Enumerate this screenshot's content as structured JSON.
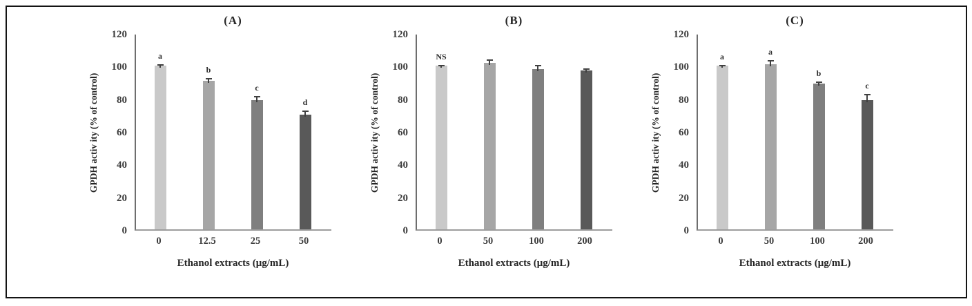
{
  "colors": {
    "bar_palette": [
      "#c9c9c9",
      "#a6a6a6",
      "#7f7f7f",
      "#595959"
    ],
    "error_bar": "#404040",
    "y_axis_line": "#6e6e6e",
    "x_axis_line": "#9c9c9c",
    "text": "#262626",
    "frame_border": "#141414",
    "background": "#ffffff"
  },
  "chart_data": [
    {
      "type": "bar",
      "title": "(A)",
      "xlabel": "Ethanol extracts (μg/mL)",
      "ylabel": "GPDH activ ity (% of control)",
      "ylim": [
        0,
        120
      ],
      "yticks": [
        0,
        20,
        40,
        60,
        80,
        100,
        120
      ],
      "grid": false,
      "legend": "none",
      "categories": [
        "0",
        "12.5",
        "25",
        "50"
      ],
      "values": [
        100,
        91,
        79,
        70
      ],
      "errors": [
        1,
        1.5,
        2.5,
        2.5
      ],
      "sig_labels": [
        "a",
        "b",
        "c",
        "d"
      ],
      "bar_colors": [
        "#c9c9c9",
        "#a6a6a6",
        "#7f7f7f",
        "#595959"
      ]
    },
    {
      "type": "bar",
      "title": "(B)",
      "xlabel": "Ethanol extracts (μg/mL)",
      "ylabel": "GPDH activ ity (% of control)",
      "ylim": [
        0,
        120
      ],
      "yticks": [
        0,
        20,
        40,
        60,
        80,
        100,
        120
      ],
      "grid": false,
      "legend": "none",
      "categories": [
        "0",
        "50",
        "100",
        "200"
      ],
      "values": [
        100,
        102,
        98,
        97
      ],
      "errors": [
        0.5,
        2,
        2.5,
        1.5
      ],
      "sig_labels": [
        "NS",
        "",
        "",
        ""
      ],
      "bar_colors": [
        "#c9c9c9",
        "#a6a6a6",
        "#7f7f7f",
        "#595959"
      ]
    },
    {
      "type": "bar",
      "title": "(C)",
      "xlabel": "Ethanol extracts (μg/mL)",
      "ylabel": "GPDH activ ity (% of control)",
      "ylim": [
        0,
        120
      ],
      "yticks": [
        0,
        20,
        40,
        60,
        80,
        100,
        120
      ],
      "grid": false,
      "legend": "none",
      "categories": [
        "0",
        "50",
        "100",
        "200"
      ],
      "values": [
        100,
        101,
        89,
        79
      ],
      "errors": [
        0.5,
        2.5,
        1.5,
        4
      ],
      "sig_labels": [
        "a",
        "a",
        "b",
        "c"
      ],
      "bar_colors": [
        "#c9c9c9",
        "#a6a6a6",
        "#7f7f7f",
        "#595959"
      ]
    }
  ]
}
